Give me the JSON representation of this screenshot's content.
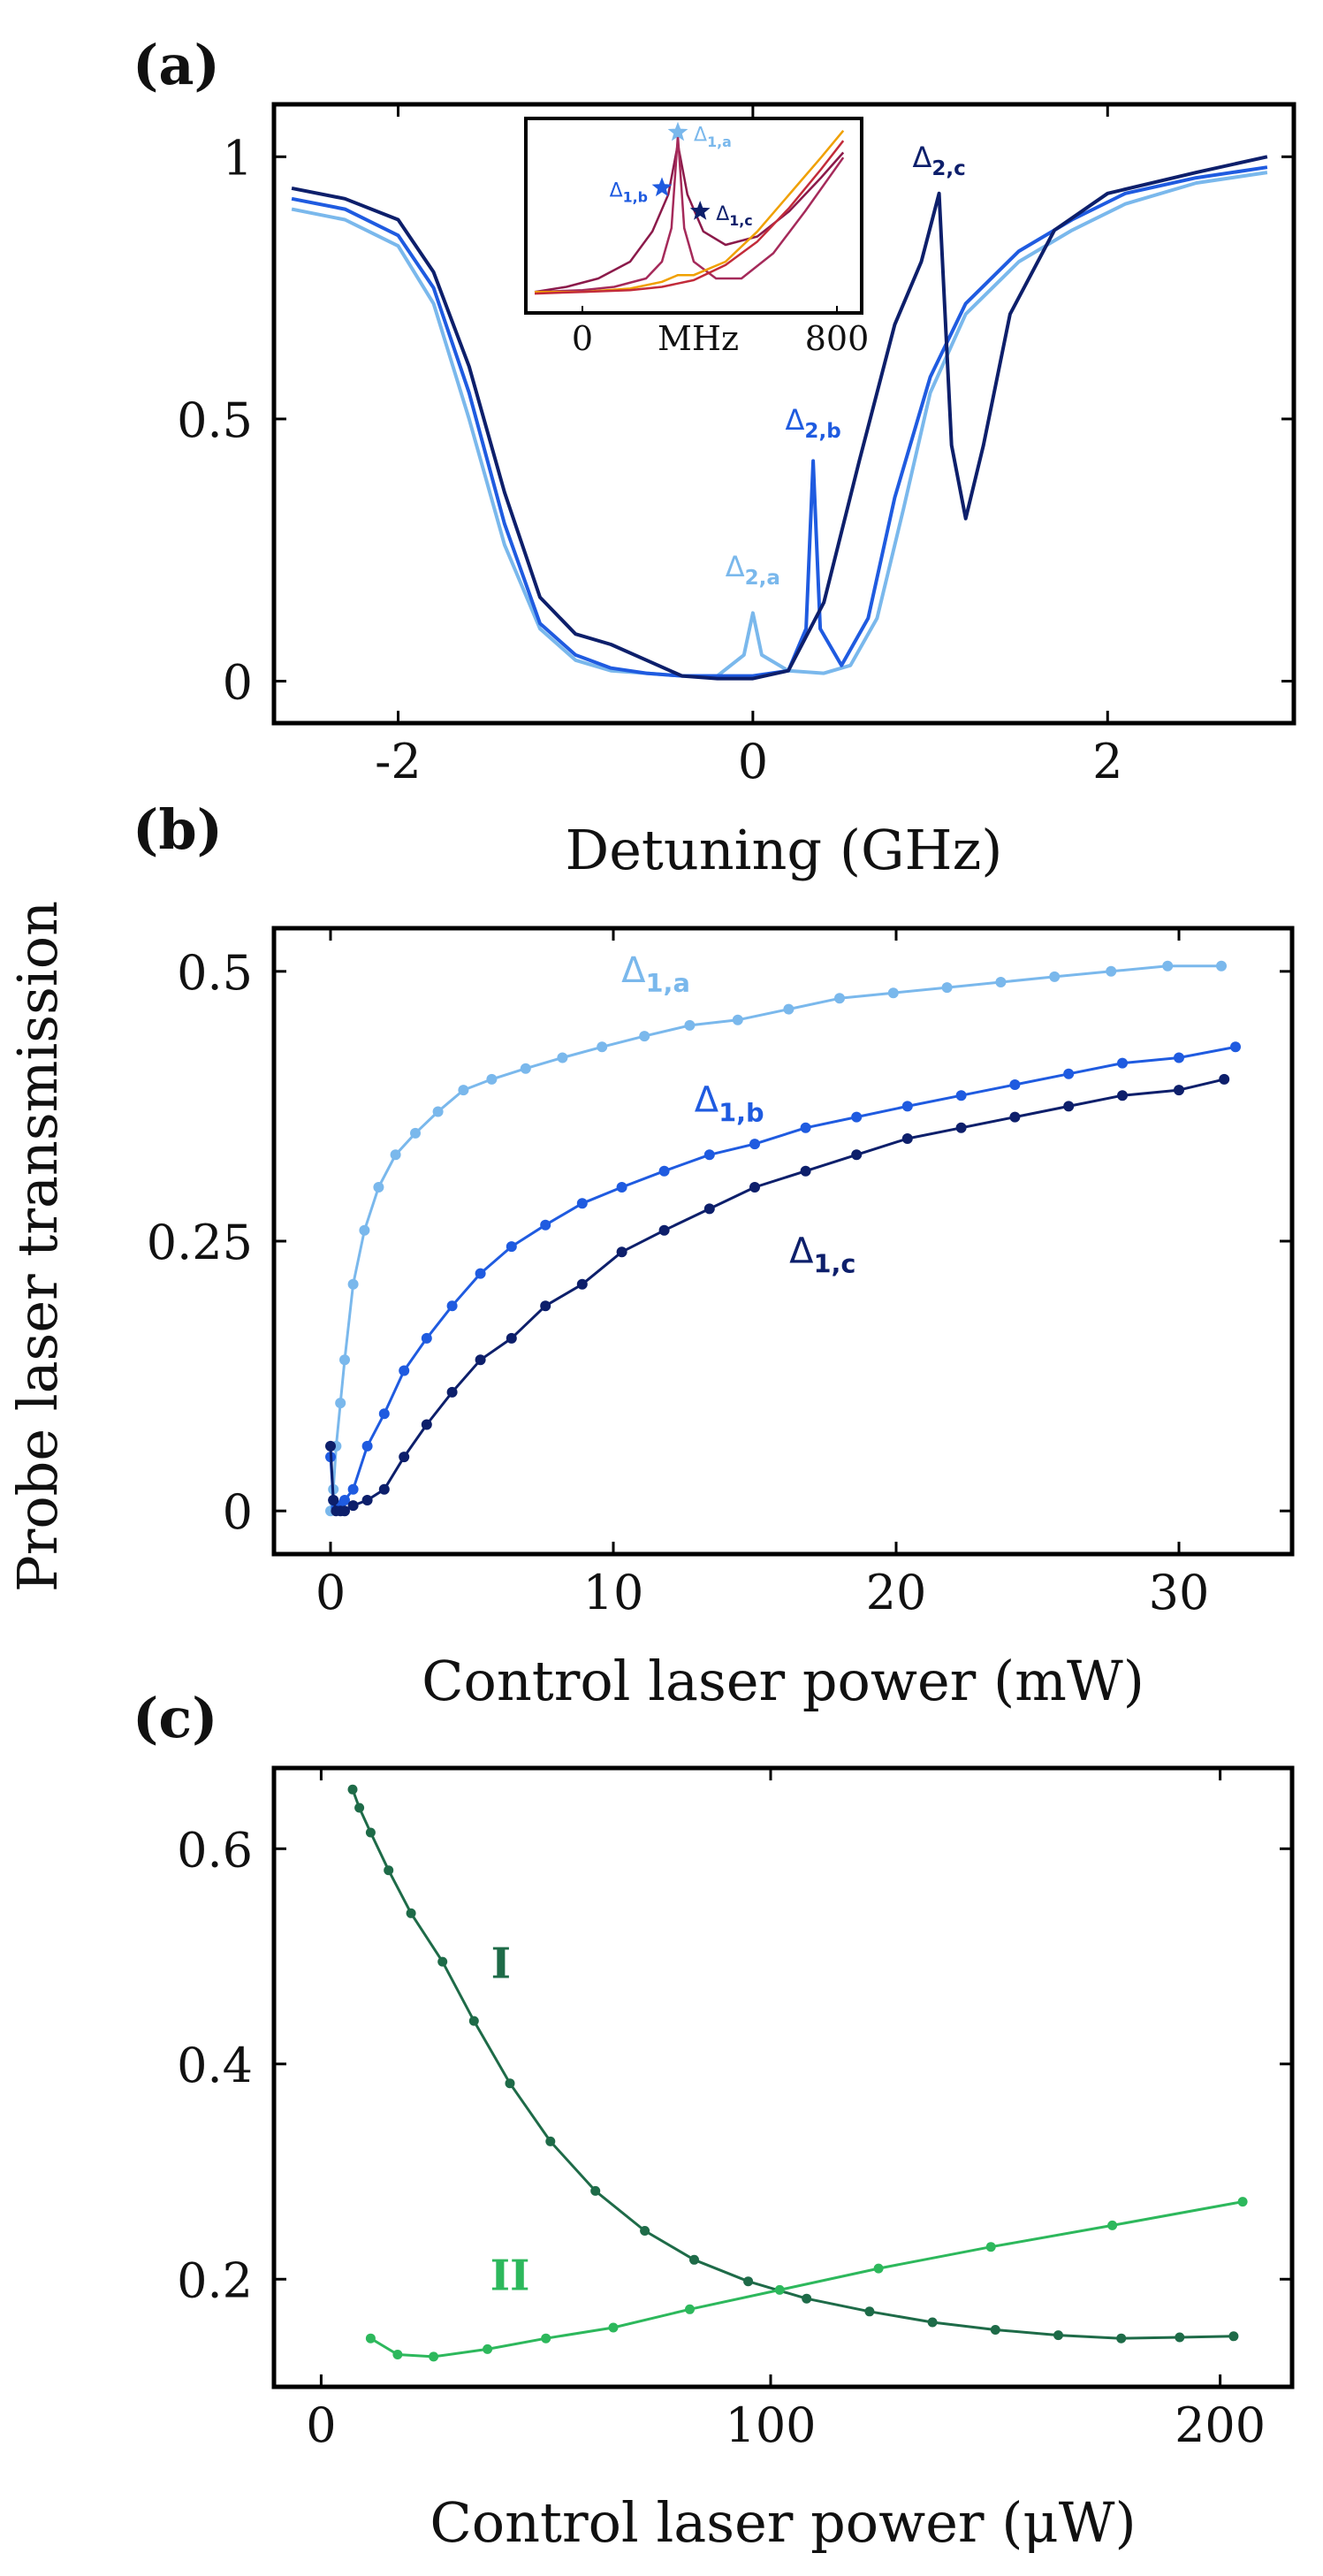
{
  "y_label": "Probe laser transmission",
  "chart_data": [
    {
      "panel": "(a)",
      "type": "line",
      "xlabel": "Detuning (GHz)",
      "ylabel": "Probe laser transmission",
      "xlim": [
        -2.7,
        3.05
      ],
      "ylim": [
        -0.08,
        1.1
      ],
      "xticks": [
        {
          "v": -2,
          "label": "-2"
        },
        {
          "v": 0,
          "label": "0"
        },
        {
          "v": 2,
          "label": "2"
        }
      ],
      "yticks": [
        {
          "v": 0,
          "label": "0"
        },
        {
          "v": 0.5,
          "label": "0.5"
        },
        {
          "v": 1,
          "label": "1"
        }
      ],
      "series": [
        {
          "name": "a",
          "color": "#7ab8ec",
          "peak_label": "Δ2,a",
          "x": [
            -2.6,
            -2.3,
            -2.0,
            -1.8,
            -1.6,
            -1.4,
            -1.2,
            -1.0,
            -0.8,
            -0.6,
            -0.4,
            -0.2,
            -0.05,
            0.0,
            0.05,
            0.2,
            0.4,
            0.55,
            0.7,
            0.85,
            1.0,
            1.2,
            1.5,
            1.8,
            2.1,
            2.5,
            2.9
          ],
          "y": [
            0.9,
            0.88,
            0.83,
            0.72,
            0.5,
            0.26,
            0.1,
            0.04,
            0.02,
            0.015,
            0.01,
            0.01,
            0.05,
            0.13,
            0.05,
            0.02,
            0.015,
            0.03,
            0.12,
            0.33,
            0.55,
            0.7,
            0.8,
            0.86,
            0.91,
            0.95,
            0.97
          ]
        },
        {
          "name": "b",
          "color": "#1f5be0",
          "peak_label": "Δ2,b",
          "x": [
            -2.6,
            -2.3,
            -2.0,
            -1.8,
            -1.6,
            -1.4,
            -1.2,
            -1.0,
            -0.8,
            -0.6,
            -0.4,
            -0.2,
            0.0,
            0.2,
            0.3,
            0.34,
            0.38,
            0.5,
            0.65,
            0.8,
            1.0,
            1.2,
            1.5,
            1.8,
            2.1,
            2.5,
            2.9
          ],
          "y": [
            0.92,
            0.9,
            0.85,
            0.75,
            0.55,
            0.3,
            0.11,
            0.05,
            0.025,
            0.015,
            0.01,
            0.01,
            0.01,
            0.02,
            0.1,
            0.42,
            0.1,
            0.03,
            0.12,
            0.35,
            0.58,
            0.72,
            0.82,
            0.88,
            0.93,
            0.96,
            0.98
          ]
        },
        {
          "name": "c",
          "color": "#0d1f6b",
          "peak_label": "Δ2,c",
          "x": [
            -2.6,
            -2.3,
            -2.0,
            -1.8,
            -1.6,
            -1.4,
            -1.2,
            -1.0,
            -0.8,
            -0.6,
            -0.4,
            -0.2,
            0.0,
            0.2,
            0.4,
            0.6,
            0.8,
            0.95,
            1.05,
            1.12,
            1.2,
            1.3,
            1.45,
            1.7,
            2.0,
            2.5,
            2.9
          ],
          "y": [
            0.94,
            0.92,
            0.88,
            0.78,
            0.6,
            0.36,
            0.16,
            0.09,
            0.07,
            0.04,
            0.01,
            0.005,
            0.005,
            0.02,
            0.15,
            0.42,
            0.68,
            0.8,
            0.93,
            0.45,
            0.31,
            0.45,
            0.7,
            0.86,
            0.93,
            0.97,
            1.0
          ]
        }
      ],
      "inset": {
        "xlabel": "MHz",
        "xticks": [
          {
            "v": 0,
            "label": "0"
          },
          {
            "v": 800,
            "label": "800"
          }
        ],
        "xlim": [
          -150,
          850
        ],
        "ylim": [
          0,
          1
        ],
        "series": [
          {
            "name": "maroon-a",
            "color": "#8b1a4a",
            "x": [
              -150,
              -50,
              50,
              150,
              220,
              270,
              300,
              330,
              380,
              450,
              550,
              650,
              750,
              820
            ],
            "y": [
              0.02,
              0.05,
              0.1,
              0.2,
              0.38,
              0.6,
              0.9,
              0.6,
              0.38,
              0.3,
              0.35,
              0.5,
              0.7,
              0.85
            ]
          },
          {
            "name": "maroon-b",
            "color": "#a52a5a",
            "x": [
              -150,
              0,
              100,
              200,
              250,
              280,
              300,
              320,
              350,
              420,
              500,
              600,
              700,
              820
            ],
            "y": [
              0.02,
              0.03,
              0.05,
              0.1,
              0.2,
              0.4,
              0.95,
              0.4,
              0.2,
              0.1,
              0.1,
              0.25,
              0.5,
              0.82
            ]
          },
          {
            "name": "orange",
            "color": "#f0a000",
            "x": [
              -150,
              0,
              150,
              250,
              300,
              350,
              450,
              550,
              650,
              750,
              820
            ],
            "y": [
              0.02,
              0.02,
              0.04,
              0.08,
              0.12,
              0.12,
              0.2,
              0.38,
              0.6,
              0.82,
              0.98
            ]
          },
          {
            "name": "red",
            "color": "#c22b3a",
            "x": [
              -150,
              0,
              150,
              250,
              300,
              350,
              450,
              550,
              650,
              750,
              820
            ],
            "y": [
              0.01,
              0.02,
              0.03,
              0.05,
              0.07,
              0.09,
              0.18,
              0.32,
              0.52,
              0.75,
              0.92
            ]
          }
        ],
        "markers": [
          {
            "label": "Δ1,a",
            "x": 300,
            "y": 0.97,
            "color": "#7ab8ec"
          },
          {
            "label": "Δ1,b",
            "x": 250,
            "y": 0.64,
            "color": "#1f5be0"
          },
          {
            "label": "Δ1,c",
            "x": 370,
            "y": 0.5,
            "color": "#0d1f6b"
          }
        ]
      }
    },
    {
      "panel": "(b)",
      "type": "line",
      "xlabel": "Control laser power (mW)",
      "ylabel": "Probe laser transmission",
      "xlim": [
        -2.0,
        34.0
      ],
      "ylim": [
        -0.04,
        0.54
      ],
      "xticks": [
        {
          "v": 0,
          "label": "0"
        },
        {
          "v": 10,
          "label": "10"
        },
        {
          "v": 20,
          "label": "20"
        },
        {
          "v": 30,
          "label": "30"
        }
      ],
      "yticks": [
        {
          "v": 0,
          "label": "0"
        },
        {
          "v": 0.25,
          "label": "0.25"
        },
        {
          "v": 0.5,
          "label": "0.5"
        }
      ],
      "series": [
        {
          "name": "Δ1,a",
          "color": "#7ab8ec",
          "x": [
            0.0,
            0.1,
            0.2,
            0.35,
            0.5,
            0.8,
            1.2,
            1.7,
            2.3,
            3.0,
            3.8,
            4.7,
            5.7,
            6.9,
            8.2,
            9.6,
            11.1,
            12.7,
            14.4,
            16.2,
            18.0,
            19.9,
            21.8,
            23.7,
            25.6,
            27.6,
            29.6,
            31.5
          ],
          "y": [
            0.0,
            0.02,
            0.06,
            0.1,
            0.14,
            0.21,
            0.26,
            0.3,
            0.33,
            0.35,
            0.37,
            0.39,
            0.4,
            0.41,
            0.42,
            0.43,
            0.44,
            0.45,
            0.455,
            0.465,
            0.475,
            0.48,
            0.485,
            0.49,
            0.495,
            0.5,
            0.505,
            0.505
          ]
        },
        {
          "name": "Δ1,b",
          "color": "#1f5be0",
          "x": [
            0.0,
            0.1,
            0.2,
            0.35,
            0.5,
            0.8,
            1.3,
            1.9,
            2.6,
            3.4,
            4.3,
            5.3,
            6.4,
            7.6,
            8.9,
            10.3,
            11.8,
            13.4,
            15.0,
            16.8,
            18.6,
            20.4,
            22.3,
            24.2,
            26.1,
            28.0,
            30.0,
            32.0
          ],
          "y": [
            0.05,
            0.01,
            0.003,
            0.005,
            0.01,
            0.02,
            0.06,
            0.09,
            0.13,
            0.16,
            0.19,
            0.22,
            0.245,
            0.265,
            0.285,
            0.3,
            0.315,
            0.33,
            0.34,
            0.355,
            0.365,
            0.375,
            0.385,
            0.395,
            0.405,
            0.415,
            0.42,
            0.43
          ]
        },
        {
          "name": "Δ1,c",
          "color": "#0d1f6b",
          "x": [
            0.0,
            0.1,
            0.2,
            0.35,
            0.5,
            0.8,
            1.3,
            1.9,
            2.6,
            3.4,
            4.3,
            5.3,
            6.4,
            7.6,
            8.9,
            10.3,
            11.8,
            13.4,
            15.0,
            16.8,
            18.6,
            20.4,
            22.3,
            24.2,
            26.1,
            28.0,
            30.0,
            31.6
          ],
          "y": [
            0.06,
            0.01,
            0.0,
            0.0,
            0.0,
            0.005,
            0.01,
            0.02,
            0.05,
            0.08,
            0.11,
            0.14,
            0.16,
            0.19,
            0.21,
            0.24,
            0.26,
            0.28,
            0.3,
            0.315,
            0.33,
            0.345,
            0.355,
            0.365,
            0.375,
            0.385,
            0.39,
            0.4
          ]
        }
      ],
      "annotations": [
        {
          "label": "Δ1,a",
          "x": 11.5,
          "y": 0.49,
          "color": "#7ab8ec"
        },
        {
          "label": "Δ1,b",
          "x": 14.1,
          "y": 0.37,
          "color": "#1f5be0"
        },
        {
          "label": "Δ1,c",
          "x": 17.4,
          "y": 0.23,
          "color": "#0d1f6b"
        }
      ]
    },
    {
      "panel": "(c)",
      "type": "line",
      "xlabel": "Control laser power (μW)",
      "ylabel": "Probe laser transmission",
      "xlim": [
        -10.5,
        216.0
      ],
      "ylim": [
        0.1,
        0.675
      ],
      "xticks": [
        {
          "v": 0,
          "label": "0"
        },
        {
          "v": 100,
          "label": "100"
        },
        {
          "v": 200,
          "label": "200"
        }
      ],
      "yticks": [
        {
          "v": 0.2,
          "label": "0.2"
        },
        {
          "v": 0.4,
          "label": "0.4"
        },
        {
          "v": 0.6,
          "label": "0.6"
        }
      ],
      "series": [
        {
          "name": "I",
          "color": "#1e6b48",
          "x": [
            7,
            8.5,
            11,
            15,
            20,
            27,
            34,
            42,
            51,
            61,
            72,
            83,
            95,
            108,
            122,
            136,
            150,
            164,
            178,
            191,
            203
          ],
          "y": [
            0.655,
            0.638,
            0.615,
            0.58,
            0.54,
            0.495,
            0.44,
            0.382,
            0.328,
            0.282,
            0.245,
            0.218,
            0.198,
            0.182,
            0.17,
            0.16,
            0.153,
            0.148,
            0.145,
            0.146,
            0.147
          ]
        },
        {
          "name": "II",
          "color": "#2db85c",
          "x": [
            11,
            17,
            25,
            37,
            50,
            65,
            82,
            102,
            124,
            149,
            176,
            205
          ],
          "y": [
            0.145,
            0.13,
            0.128,
            0.135,
            0.145,
            0.155,
            0.172,
            0.19,
            0.21,
            0.23,
            0.25,
            0.272
          ]
        }
      ],
      "annotations": [
        {
          "label": "I",
          "x": 40,
          "y": 0.48,
          "color": "#1e6b48"
        },
        {
          "label": "II",
          "x": 42,
          "y": 0.19,
          "color": "#2db85c"
        }
      ]
    }
  ]
}
